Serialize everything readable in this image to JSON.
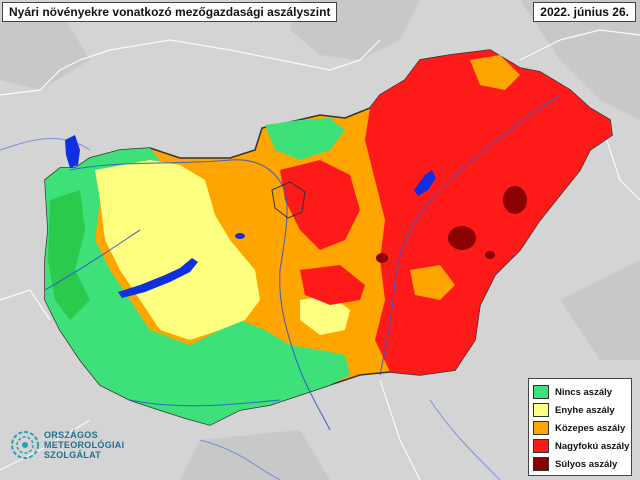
{
  "title": "Nyári növényekre vonatkozó mezőgazdasági aszályszint",
  "date": "2022. június 26.",
  "legend": [
    {
      "label": "Nincs aszály",
      "color": "#3ee07a"
    },
    {
      "label": "Enyhe aszály",
      "color": "#ffff80"
    },
    {
      "label": "Közepes aszály",
      "color": "#ffa500"
    },
    {
      "label": "Nagyfokú aszály",
      "color": "#ff1a1a"
    },
    {
      "label": "Súlyos aszály",
      "color": "#8b0000"
    }
  ],
  "logo": {
    "line1": "ORSZÁGOS",
    "line2": "METEOROLÓGIAI",
    "line3": "SZOLGÁLAT",
    "icon": "globe-swirl-icon"
  },
  "colors": {
    "background": "#d6d6d6",
    "water": "#1030e0",
    "green_zone": "#3ee07a",
    "dark_green_zone": "#1fbb2d",
    "yellow_zone": "#ffff80",
    "orange_zone": "#ffa500",
    "red_zone": "#ff1a1a",
    "dark_red_zone": "#8b0000"
  }
}
